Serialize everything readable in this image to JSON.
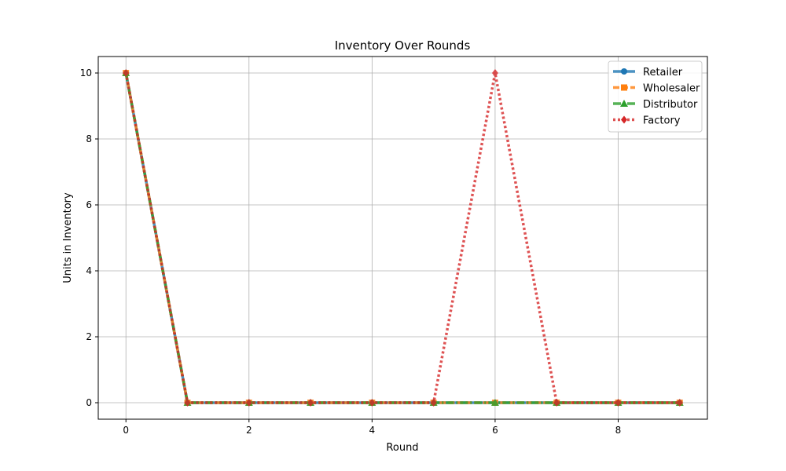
{
  "chart_data": {
    "type": "line",
    "title": "Inventory Over Rounds",
    "xlabel": "Round",
    "ylabel": "Units in Inventory",
    "x": [
      0,
      1,
      2,
      3,
      4,
      5,
      6,
      7,
      8,
      9
    ],
    "xlim": [
      -0.45,
      9.45
    ],
    "ylim": [
      -0.5,
      10.5
    ],
    "xticks": [
      0,
      2,
      4,
      6,
      8
    ],
    "yticks": [
      0,
      2,
      4,
      6,
      8,
      10
    ],
    "grid": true,
    "legend_position": "top-right",
    "series": [
      {
        "name": "Retailer",
        "color": "#1f77b4",
        "marker": "circle",
        "dash": "solid",
        "values": [
          10,
          0,
          0,
          0,
          0,
          0,
          0,
          0,
          0,
          0
        ]
      },
      {
        "name": "Wholesaler",
        "color": "#ff7f0e",
        "marker": "square",
        "dash": "dashed",
        "values": [
          10,
          0,
          0,
          0,
          0,
          0,
          0,
          0,
          0,
          0
        ]
      },
      {
        "name": "Distributor",
        "color": "#2ca02c",
        "marker": "triangle",
        "dash": "dashdot",
        "values": [
          10,
          0,
          0,
          0,
          0,
          0,
          0,
          0,
          0,
          0
        ]
      },
      {
        "name": "Factory",
        "color": "#d62728",
        "marker": "diamond",
        "dash": "dotted",
        "values": [
          10,
          0,
          0,
          0,
          0,
          0,
          10,
          0,
          0,
          0
        ]
      }
    ]
  }
}
